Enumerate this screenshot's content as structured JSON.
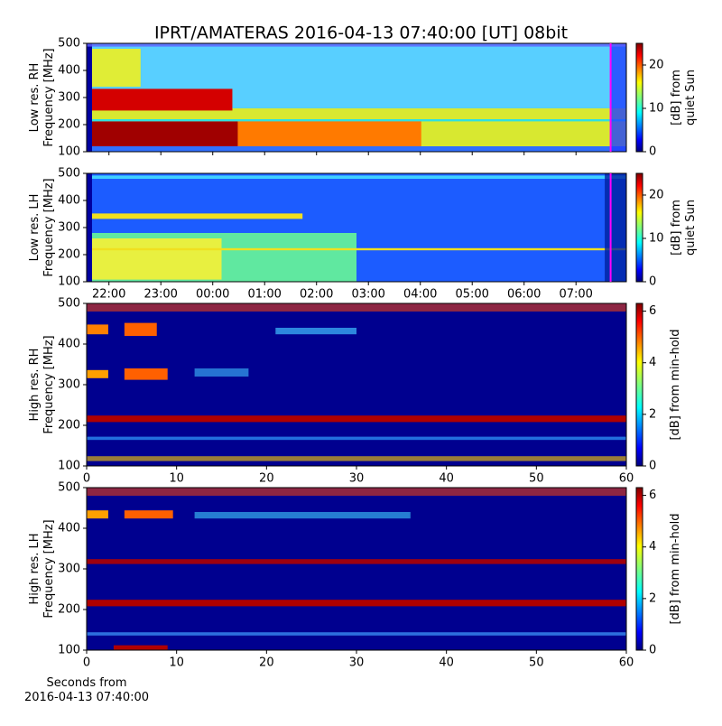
{
  "chart_data": [
    {
      "type": "heatmap",
      "title": "IPRT/AMATERAS 2016-04-13 07:40:00 [UT]   08bit",
      "ylabel": [
        "Low res. RH",
        "Frequency [MHz]"
      ],
      "ylim": [
        100,
        500
      ],
      "yticks": [
        100,
        200,
        300,
        400,
        500
      ],
      "colorbar_label": [
        "[dB] from",
        "quiet Sun"
      ],
      "clim": [
        0,
        25
      ],
      "cticks": [
        0,
        10,
        20
      ],
      "marker_x": 31.667,
      "marker_color": "#ff00ff"
    },
    {
      "type": "heatmap",
      "ylabel": [
        "Low res. LH",
        "Frequency [MHz]"
      ],
      "ylim": [
        100,
        500
      ],
      "yticks": [
        100,
        200,
        300,
        400,
        500
      ],
      "colorbar_label": [
        "[dB] from",
        "quiet Sun"
      ],
      "clim": [
        0,
        25
      ],
      "cticks": [
        0,
        10,
        20
      ],
      "xlim": [
        21.57,
        31.97
      ],
      "xticks": [
        {
          "value": 22,
          "label": "22:00"
        },
        {
          "value": 23,
          "label": "23:00"
        },
        {
          "value": 24,
          "label": "00:00"
        },
        {
          "value": 25,
          "label": "01:00"
        },
        {
          "value": 26,
          "label": "02:00"
        },
        {
          "value": 27,
          "label": "03:00"
        },
        {
          "value": 28,
          "label": "04:00"
        },
        {
          "value": 29,
          "label": "05:00"
        },
        {
          "value": 30,
          "label": "06:00"
        },
        {
          "value": 31,
          "label": "07:00"
        }
      ],
      "marker_x": 31.667,
      "marker_color": "#ff00ff"
    },
    {
      "type": "heatmap",
      "ylabel": [
        "High res. RH",
        "Frequency [MHz]"
      ],
      "ylim": [
        100,
        500
      ],
      "yticks": [
        100,
        200,
        300,
        400,
        500
      ],
      "colorbar_label": [
        "[dB] from min-hold"
      ],
      "clim": [
        0,
        6.3
      ],
      "cticks": [
        0,
        2,
        4,
        6
      ],
      "xlim": [
        0,
        60
      ],
      "xticks": [
        0,
        10,
        20,
        30,
        40,
        50,
        60
      ]
    },
    {
      "type": "heatmap",
      "ylabel": [
        "High res. LH",
        "Frequency [MHz]"
      ],
      "ylim": [
        100,
        500
      ],
      "yticks": [
        100,
        200,
        300,
        400,
        500
      ],
      "colorbar_label": [
        "[dB] from min-hold"
      ],
      "clim": [
        0,
        6.3
      ],
      "cticks": [
        0,
        2,
        4,
        6
      ],
      "xlim": [
        0,
        60
      ],
      "xticks": [
        0,
        10,
        20,
        30,
        40,
        50,
        60
      ],
      "xlabel": [
        "Seconds from",
        "2016-04-13 07:40:00"
      ]
    }
  ]
}
